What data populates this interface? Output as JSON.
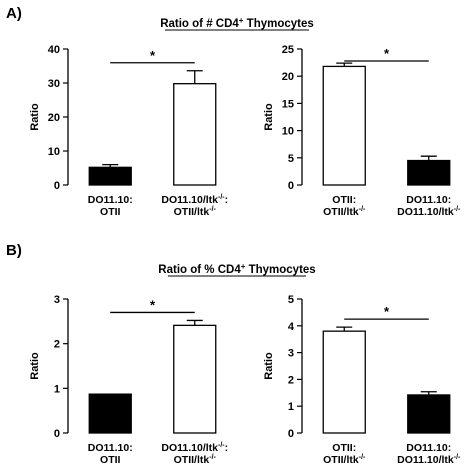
{
  "panels": [
    {
      "label": "A)",
      "title": "Ratio of # CD4",
      "title_sup": "+",
      "title_rest": " Thymocytes",
      "charts": [
        {
          "type": "bar",
          "ylabel": "Ratio",
          "ylim": [
            0,
            40
          ],
          "yticks": [
            0,
            10,
            20,
            30,
            40
          ],
          "significance": "*",
          "grid": false,
          "categories": [
            {
              "lines": [
                {
                  "t": "DO11.10:"
                },
                {
                  "t": "OTII"
                }
              ]
            },
            {
              "lines": [
                {
                  "t": "DO11.10/ltk",
                  "sup": "-/-",
                  "tail": ":"
                },
                {
                  "t": "OTII/ltk",
                  "sup": "-/-"
                }
              ]
            }
          ],
          "values": [
            5.2,
            29.8
          ],
          "errors": [
            0.8,
            3.8
          ],
          "fills": [
            "#000000",
            "#ffffff"
          ]
        },
        {
          "type": "bar",
          "ylabel": "Ratio",
          "ylim": [
            0,
            25
          ],
          "yticks": [
            0,
            5,
            10,
            15,
            20,
            25
          ],
          "significance": "*",
          "grid": false,
          "categories": [
            {
              "lines": [
                {
                  "t": "OTII:"
                },
                {
                  "t": "OTII/ltk",
                  "sup": "-/-"
                }
              ]
            },
            {
              "lines": [
                {
                  "t": "DO11.10:"
                },
                {
                  "t": "DO11.10/ltk",
                  "sup": "-/-"
                }
              ]
            }
          ],
          "values": [
            21.8,
            4.5
          ],
          "errors": [
            0.6,
            0.8
          ],
          "fills": [
            "#ffffff",
            "#000000"
          ]
        }
      ]
    },
    {
      "label": "B)",
      "title": "Ratio of % CD4",
      "title_sup": "+",
      "title_rest": " Thymocytes",
      "charts": [
        {
          "type": "bar",
          "ylabel": "Ratio",
          "ylim": [
            0,
            3
          ],
          "yticks": [
            0,
            1,
            2,
            3
          ],
          "significance": "*",
          "grid": false,
          "categories": [
            {
              "lines": [
                {
                  "t": "DO11.10:"
                },
                {
                  "t": "OTII"
                }
              ]
            },
            {
              "lines": [
                {
                  "t": "DO11.10/ltk",
                  "sup": "-/-",
                  "tail": ":"
                },
                {
                  "t": "OTII/ltk",
                  "sup": "-/-"
                }
              ]
            }
          ],
          "values": [
            0.87,
            2.41
          ],
          "errors": [
            0.0,
            0.11
          ],
          "fills": [
            "#000000",
            "#ffffff"
          ]
        },
        {
          "type": "bar",
          "ylabel": "Ratio",
          "ylim": [
            0,
            5
          ],
          "yticks": [
            0,
            1,
            2,
            3,
            4,
            5
          ],
          "significance": "*",
          "grid": false,
          "categories": [
            {
              "lines": [
                {
                  "t": "OTII:"
                },
                {
                  "t": "OTII/ltk",
                  "sup": "-/-"
                }
              ]
            },
            {
              "lines": [
                {
                  "t": "DO11.10:"
                },
                {
                  "t": "DO11.10/ltk",
                  "sup": "-/-"
                }
              ]
            }
          ],
          "values": [
            3.8,
            1.42
          ],
          "errors": [
            0.15,
            0.12
          ],
          "fills": [
            "#ffffff",
            "#000000"
          ]
        }
      ]
    }
  ],
  "chart_data": [
    {
      "type": "bar",
      "panel": "A)",
      "ylabel": "Ratio",
      "ylim": [
        0,
        40
      ],
      "categories": [
        "DO11.10: OTII",
        "DO11.10/ltk-/-: OTII/ltk-/-"
      ],
      "values": [
        5.2,
        29.8
      ],
      "errors": [
        0.8,
        3.8
      ],
      "significance": "*"
    },
    {
      "type": "bar",
      "panel": "A)",
      "ylabel": "Ratio",
      "ylim": [
        0,
        25
      ],
      "categories": [
        "OTII: OTII/ltk-/-",
        "DO11.10: DO11.10/ltk-/-"
      ],
      "values": [
        21.8,
        4.5
      ],
      "errors": [
        0.6,
        0.8
      ],
      "significance": "*"
    },
    {
      "type": "bar",
      "panel": "B)",
      "ylabel": "Ratio",
      "ylim": [
        0,
        3
      ],
      "categories": [
        "DO11.10: OTII",
        "DO11.10/ltk-/-: OTII/ltk-/-"
      ],
      "values": [
        0.87,
        2.41
      ],
      "errors": [
        0.0,
        0.11
      ],
      "significance": "*"
    },
    {
      "type": "bar",
      "panel": "B)",
      "ylabel": "Ratio",
      "ylim": [
        0,
        5
      ],
      "categories": [
        "OTII: OTII/ltk-/-",
        "DO11.10: DO11.10/ltk-/-"
      ],
      "values": [
        3.8,
        1.42
      ],
      "errors": [
        0.15,
        0.12
      ],
      "significance": "*"
    }
  ]
}
